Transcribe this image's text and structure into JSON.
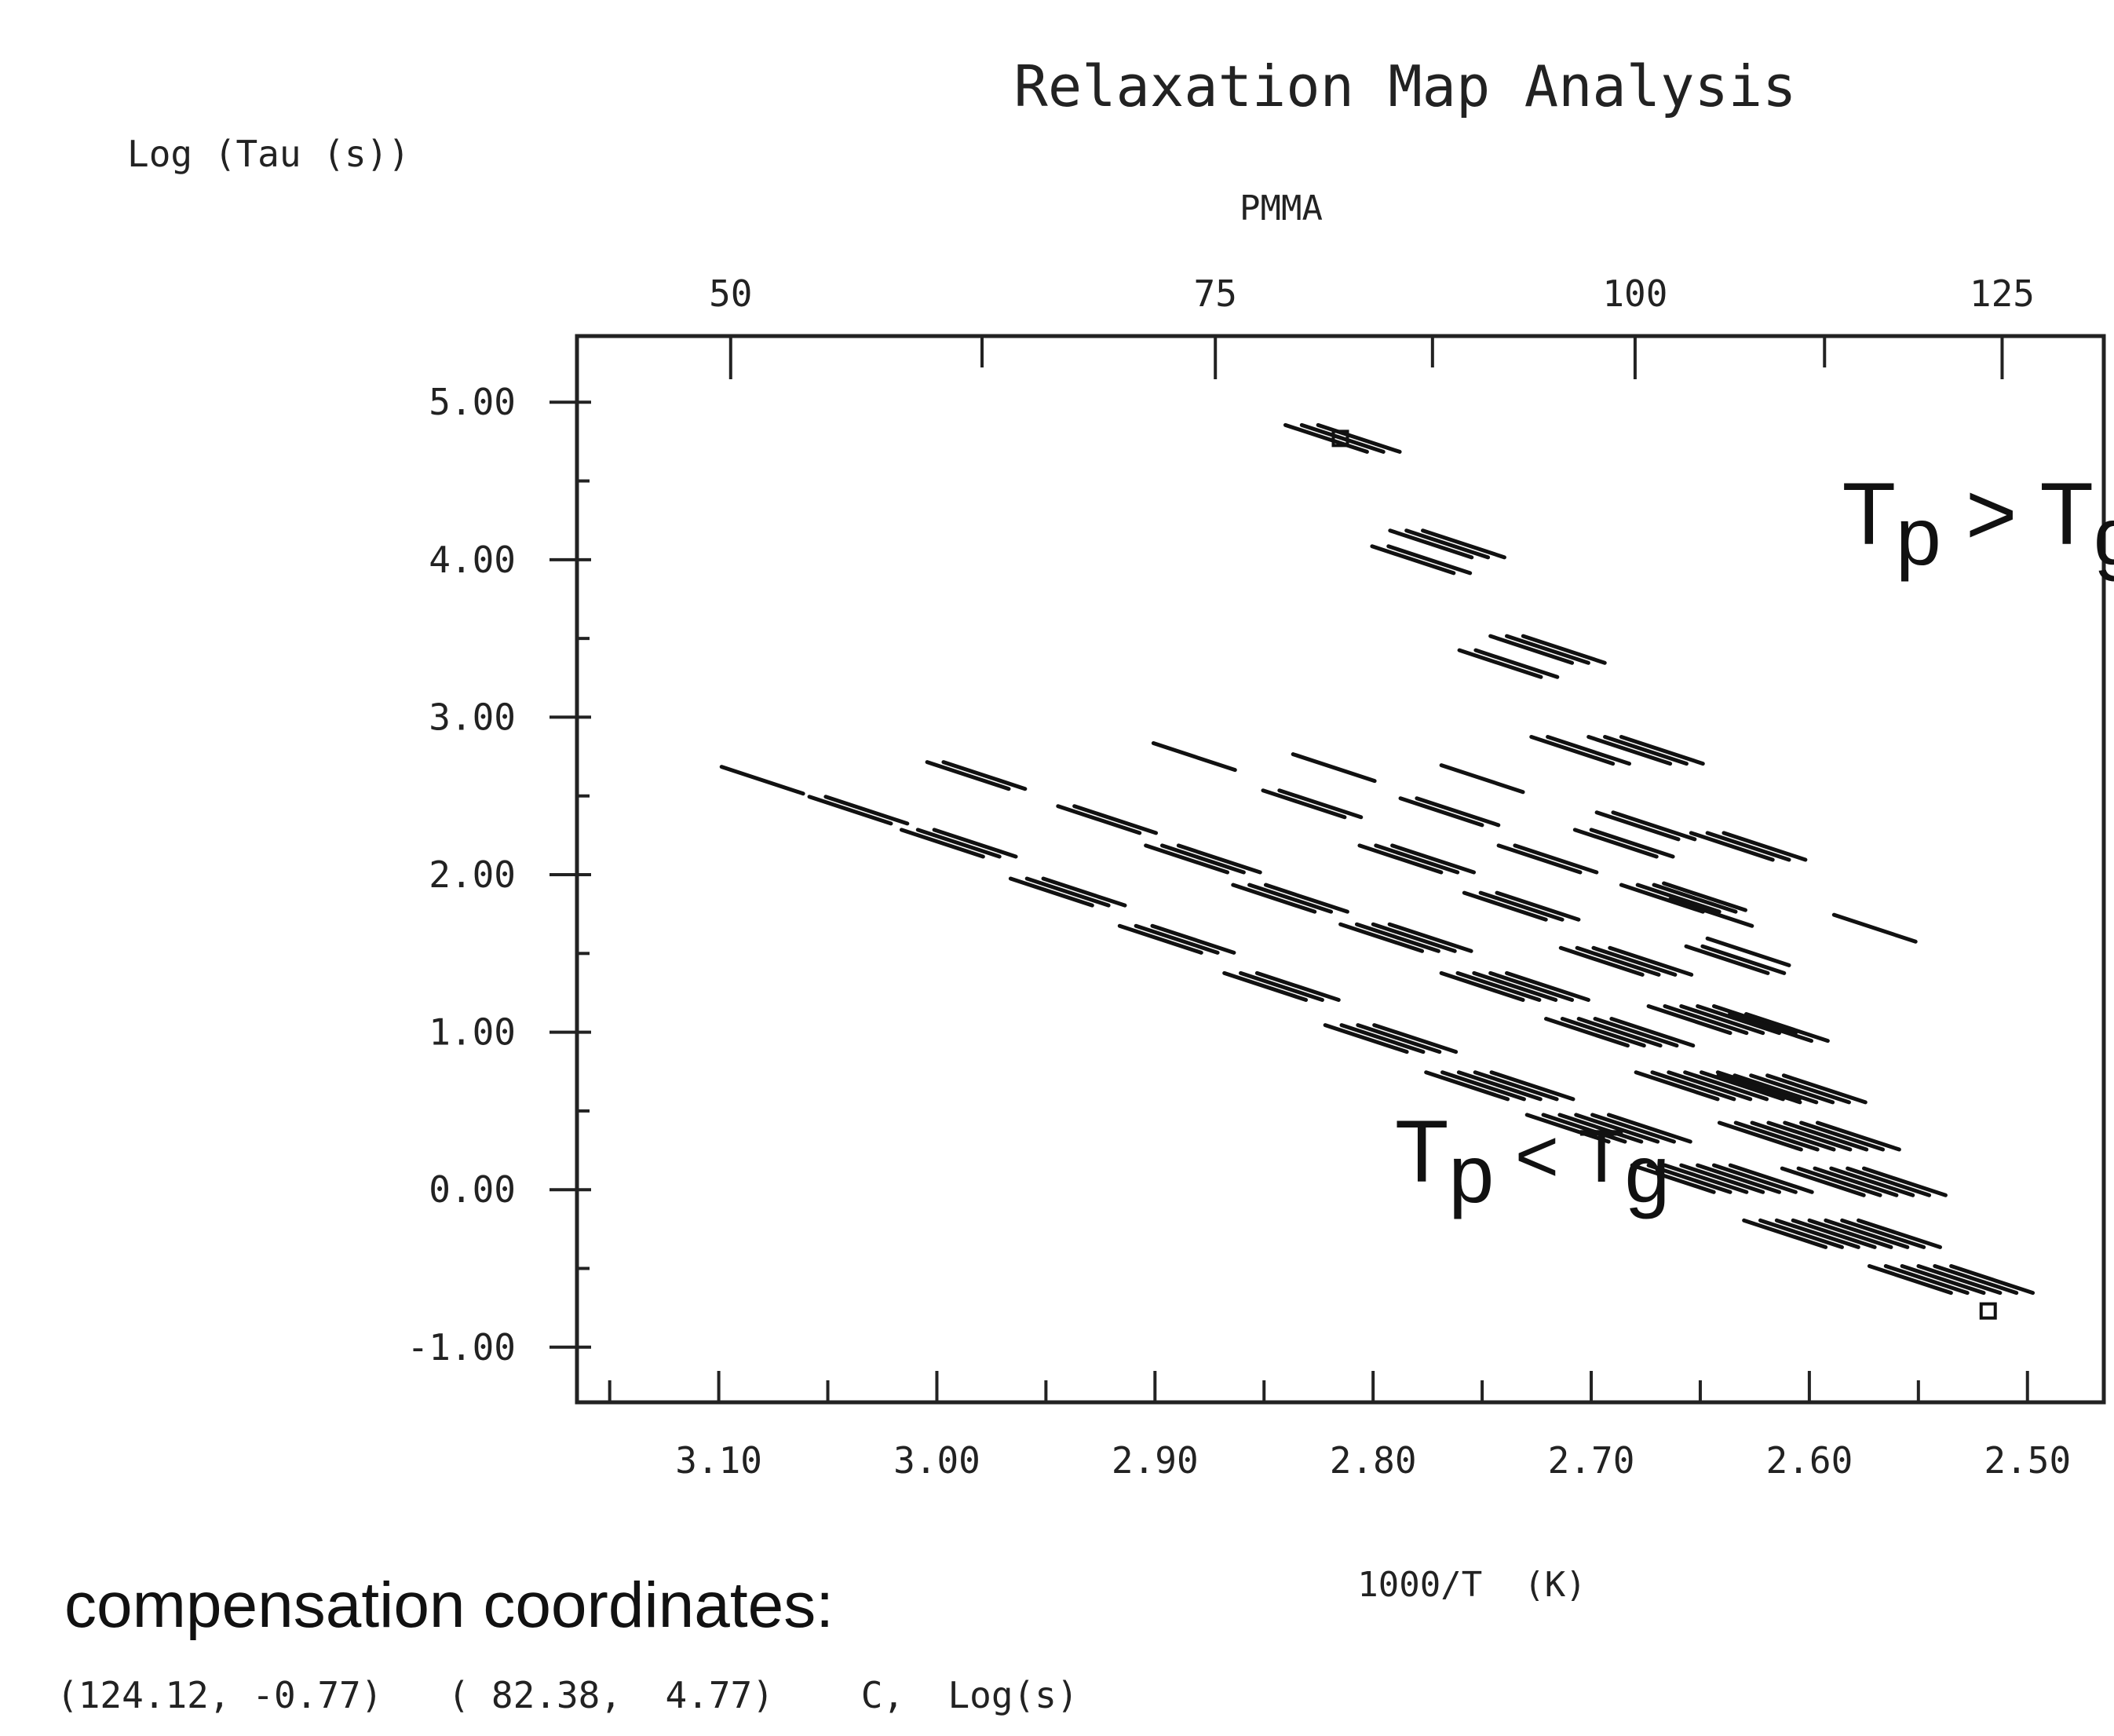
{
  "chart_data": {
    "type": "line",
    "title": "Relaxation Map Analysis",
    "subtitle": "PMMA",
    "ylabel": "Log (Tau (s))",
    "xlabel": "1000/T  (K)",
    "x_top_ticks": [
      "50",
      "75",
      "100",
      "125"
    ],
    "x_top_values": [
      50,
      75,
      100,
      125
    ],
    "x_bottom_ticks": [
      "3.10",
      "3.00",
      "2.90",
      "2.80",
      "2.70",
      "2.60",
      "2.50"
    ],
    "x_bottom_values": [
      3.1,
      3.0,
      2.9,
      2.8,
      2.7,
      2.6,
      2.5
    ],
    "y_ticks": [
      "5.00",
      "4.00",
      "3.00",
      "2.00",
      "1.00",
      "0.00",
      "-1.00"
    ],
    "y_values": [
      5,
      4,
      3,
      2,
      1,
      0,
      -1
    ],
    "xlim": [
      3.165,
      2.465
    ],
    "ylim": [
      -1.35,
      5.42
    ],
    "annotations": {
      "upper": {
        "main": "T",
        "sub1": "p",
        "rel": " > T",
        "sub2": "g",
        "x": 2.585,
        "y": 4.1
      },
      "lower": {
        "main": "T",
        "sub1": "p",
        "rel": " < T",
        "sub2": "g",
        "x": 2.79,
        "y": 0.05
      }
    },
    "compensation_points": [
      {
        "x": 2.815,
        "y": 4.77
      },
      {
        "x": 2.518,
        "y": -0.77
      }
    ],
    "segment_length": 0.34,
    "series": [
      {
        "segments": [
          [
            2.814,
            4.77,
            2.6
          ],
          [
            2.766,
            4.1,
            3
          ],
          [
            2.72,
            3.43,
            3
          ],
          [
            2.675,
            2.79,
            3
          ],
          [
            2.628,
            2.18,
            3
          ],
          [
            2.57,
            1.66,
            1
          ]
        ]
      },
      {
        "segments": [
          [
            2.778,
            4.0,
            2
          ],
          [
            2.738,
            3.34,
            2
          ],
          [
            2.705,
            2.79,
            2
          ],
          [
            2.675,
            2.31,
            2
          ],
          [
            2.645,
            1.76,
            1
          ],
          [
            2.628,
            1.51,
            1
          ]
        ]
      },
      {
        "segments": [
          [
            3.08,
            2.6,
            1
          ],
          [
            3.036,
            2.41,
            2
          ],
          [
            2.99,
            2.2,
            3
          ],
          [
            2.94,
            1.89,
            3
          ],
          [
            2.89,
            1.59,
            3
          ],
          [
            2.842,
            1.29,
            3
          ],
          [
            2.792,
            0.96,
            4
          ],
          [
            2.742,
            0.66,
            5
          ],
          [
            2.692,
            0.39,
            6
          ],
          [
            2.64,
            0.07,
            7
          ],
          [
            2.585,
            -0.28,
            8
          ],
          [
            2.535,
            -0.57,
            6
          ]
        ]
      },
      {
        "segments": [
          [
            2.982,
            2.63,
            2
          ],
          [
            2.922,
            2.35,
            2
          ],
          [
            2.878,
            2.1,
            3
          ],
          [
            2.838,
            1.85,
            3
          ],
          [
            2.785,
            1.6,
            4
          ],
          [
            2.735,
            1.29,
            5
          ],
          [
            2.687,
            1.0,
            5
          ],
          [
            2.642,
            0.66,
            6
          ],
          [
            2.6,
            0.34,
            7
          ],
          [
            2.575,
            0.05,
            6
          ]
        ]
      },
      {
        "segments": [
          [
            2.882,
            2.75,
            1
          ],
          [
            2.828,
            2.45,
            2
          ],
          [
            2.78,
            2.1,
            3
          ],
          [
            2.732,
            1.8,
            3
          ],
          [
            2.684,
            1.45,
            4
          ],
          [
            2.64,
            1.08,
            5
          ],
          [
            2.608,
            0.64,
            5
          ]
        ]
      },
      {
        "segments": [
          [
            2.818,
            2.68,
            1
          ],
          [
            2.765,
            2.4,
            2
          ],
          [
            2.72,
            2.1,
            2
          ],
          [
            2.66,
            1.85,
            3
          ],
          [
            2.634,
            1.46,
            2
          ],
          [
            2.614,
            1.03,
            2
          ]
        ]
      },
      {
        "segments": [
          [
            2.75,
            2.61,
            0.5
          ],
          [
            2.685,
            2.2,
            2
          ],
          [
            2.648,
            1.86,
            1
          ]
        ]
      }
    ],
    "footer": {
      "heading": "compensation coordinates:",
      "values": "(124.12, -0.77)   ( 82.38,  4.77)    C,  Log(s)"
    }
  }
}
